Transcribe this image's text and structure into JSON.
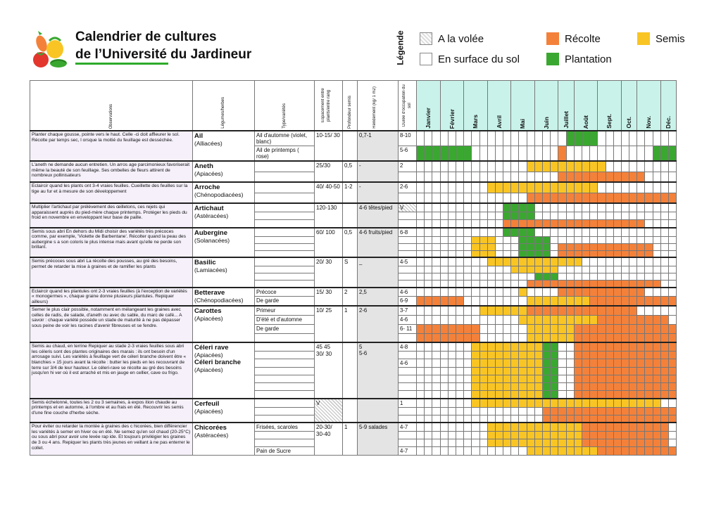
{
  "header": {
    "title_line1": "Calendrier de cultures",
    "title_line2": "de l’Université du Jardineur"
  },
  "legend": {
    "heading": "Légende",
    "items": [
      {
        "key": "volee",
        "label": "A la volée"
      },
      {
        "key": "surface",
        "label": "En surface du sol"
      },
      {
        "key": "recolte",
        "label": "Récolte",
        "color": "#f4813a"
      },
      {
        "key": "plantation",
        "label": "Plantation",
        "color": "#3aa830"
      },
      {
        "key": "semis",
        "label": "Semis",
        "color": "#f9c524"
      }
    ]
  },
  "table": {
    "columns": {
      "observations": "Observations",
      "legumes": "Légumes/herbes",
      "type": "Type/variétés",
      "espacement": "Espacement entre plants/entre rang",
      "profondeur": "Profondeur semis",
      "rendement": "Rendement (kg/ 1 m2)",
      "duree": "Durée d'occupation du sol"
    },
    "months": [
      "Janvier",
      "Février",
      "Mars",
      "Avril",
      "Mai",
      "Juin",
      "Juillet",
      "Août",
      "Sept.",
      "Oct.",
      "Nov.",
      "Déc."
    ],
    "groups": [
      {
        "observation": "Planter chaque gousse, pointe vers le haut. Celle -ci doit affleurer le sol. Récolte par temps sec, l orsque la moitié du feuillage est desséchée.",
        "name": "Ail",
        "family": "(Alliacées)",
        "espacement": "10-15/ 30",
        "profondeur": "",
        "rendement": "0,7-1",
        "rows": [
          {
            "type": "Ail d'automne (violet, blanc)",
            "duree": "8-10",
            "cells": "WWWWWWWWWWWWWWWWWWWGGGGWWWWWWWWWW"
          },
          {
            "type": "Ail de printemps ( rose)",
            "duree": "5-6",
            "cells": "GGGGGGGWWWWWWWWWWWOWWWWWWWWWWWGGG"
          }
        ]
      },
      {
        "observation": "L'aneth ne demande aucun entretien. Un arros age parcimonieux favoriserait même la beauté de son feuillage. Ses ombelles de fleurs attirent de nombreux pollinisateurs",
        "name": "Aneth",
        "family": "(Apiacées)",
        "espacement": "25/30",
        "profondeur": "0,5",
        "rendement": "-",
        "rows": [
          {
            "type": "",
            "duree": "2",
            "cells": "WWWWWWWWWWWWWWYYYYYYYYYYWWWWWWWWW"
          },
          {
            "type": "",
            "duree": "",
            "cells": "WWWWWWWWWWWWWWWWWWOOOOOOOOOOOWWWW"
          }
        ]
      },
      {
        "observation": "Eclaircir quand les plants ont 3-4 vraies feuilles. Cueillette des feuilles sur la tige au fur et à mesure de son développement",
        "name": "Arroche",
        "family": "(Chénopodiacées)",
        "espacement": "40/ 40-50",
        "profondeur": "1-2",
        "rendement": "-",
        "rows": [
          {
            "type": "",
            "duree": "2-6",
            "cells": "WWWWWWWWWYYYYYYYYYYYYYYWWWWWWWWWW"
          },
          {
            "type": "",
            "duree": "",
            "cells": "WWWWWWWWWWWWWWOOOOOOOOOOOOOOOOOOO"
          }
        ]
      },
      {
        "observation": "Multiplier l'artichaut par prélèvement des œilletons, ces rejets qui apparaissent auprès du pied-mère chaque printemps. Protéger les pieds du froid en novembre en enveloppant leur base de paille.",
        "name": "Artichaut",
        "family": "(Astéracées)",
        "espacement": "120-130",
        "profondeur": "",
        "rendement": "4-6 têtes/pied",
        "duree_dots": true,
        "rows": [
          {
            "type": "",
            "duree": "V",
            "cells": "WWWWWWWWWWWGGGGWWWWWWWWWWWWWWWWWW"
          },
          {
            "type": "",
            "duree": "",
            "cells": "WWWWWWWWWWWGGGGWWWWWWWWWWWWWWWWWW"
          },
          {
            "type": "",
            "duree": "",
            "cells": "WWWWWWWWWWWOOOOOOOOOOOOOOOOOOWWWW"
          }
        ]
      },
      {
        "observation": "Semis sous abri En dehors du Midi choisir des variétés très précoces comme, par exemple, 'Violette de Barbentane'. Récolter quand la peau des aubergine s a son coloris le plus intense mais avant qu'elle ne perde son brillant.",
        "name": "Aubergine",
        "family": "(Solanacées)",
        "espacement": "60/ 100",
        "profondeur": "0,5",
        "rendement": "4-6 fruits/pied",
        "rows": [
          {
            "type": "",
            "duree": "6-8",
            "cells": "WWWWWWWWWWWGGGGWWWWWWWWWWWWWWWWWW"
          },
          {
            "type": "",
            "duree": "",
            "cells": "WWWWWWWYYYWWWGGGGWWWWWWWWWWWWWWWW"
          },
          {
            "type": "",
            "duree": "",
            "cells": "WWWWWWWYYYWWWGGGGWOOOOOOOOOOOOWWW"
          },
          {
            "type": "",
            "duree": "",
            "cells": "WWWWWWWYYYWWWGGGGWOOOOOOOOOOOOWWW"
          }
        ]
      },
      {
        "observation": "Semis précoces sous abri La récolte des pousses, au gré des besoins, permet de retarder la mise à graines et de ramifier les plants",
        "name": "Basilic",
        "family": "(Lamiacées)",
        "espacement": "20/ 30",
        "profondeur": "S",
        "rendement": "_",
        "rows": [
          {
            "type": "",
            "duree": "4-5",
            "cells": "WWWWWWWWWYYYYYYYYYYYYWWWWWWWWWWWW"
          },
          {
            "type": "",
            "duree": "",
            "cells": "WWWWWWWWWWWWYYYYYYWWWWWWWWWWWWWWW"
          },
          {
            "type": "",
            "duree": "",
            "cells": "WWWWWWWWWWWWWWWGGGWWWWWWWWWWWWWWW"
          },
          {
            "type": "",
            "duree": "",
            "cells": "WWWWWWWWWWWWWWOOOOOOOOOOOOOOOOOWW"
          }
        ]
      },
      {
        "observation": "Eclaircir quand les plantules ont 2-3 vraies feuilles (à l'exception de variétés « monogermes », chaque graine donne plusieurs plantules. Repiquer ailleurs)",
        "name": "Betterave",
        "family": "(Chénopodiacées)",
        "espacement": "15/ 30",
        "profondeur": "2",
        "rendement": "2,5",
        "rows": [
          {
            "type": "Précoce",
            "duree": "4-6",
            "cells": "WWWWWWWWWWWWWYWWWWOOOOOOOOOOOWWWW"
          },
          {
            "type": "De garde",
            "duree": "6-9",
            "cells": "OOOOOOWWWWWWWWYYYYYYYYOOOOOOOOOOO"
          }
        ]
      },
      {
        "observation": "Semer le plus clair possible, notamment en mélangeant les graines avec celles de radis, de salade, d'aneth ou avec du sable, du marc de café... A savoir : chaque variété possède un stade de maturité à ne pas dépasser sous peine de voir les racines d'avenir fibreuses et se fendre.",
        "name": "Carottes",
        "family": "(Apiacées)",
        "espacement": "10/ 25",
        "profondeur": "1",
        "rendement": "2-6",
        "rows": [
          {
            "type": "Primeur",
            "duree": "3-7",
            "cells": "WWWWWWWWYYYYYYOOOOOOOOOOOOOOWWWWW"
          },
          {
            "type": "D'été et d'automne",
            "duree": "4-6",
            "cells": "WWWWWWWWWWWWWYYYYYYYYYYOOOOOOOOOW"
          },
          {
            "type": "De garde",
            "duree": "6- 11",
            "cells": "OOOOOOOOWWWWWWYYYYYYOOOOOOOOOOOOO"
          },
          {
            "type": "",
            "duree": "",
            "cells": "OOOOOOOOWWWWWWYYYYYYOOOOOOOOOOOOO"
          }
        ]
      },
      {
        "observation": "Semis au chaud, en terrine Repiquer au stade 2-3 vraies feuilles sous abri les céleris sont des plantes originaires des marais : ils ont besoin d'un arrosage suivi. Les variétés à feuillage vert de céleri branche doivent être « blanchies » 15 jours avant la récolte : butter les pieds en les recouvrant de terre sur 3/4 de leur hauteur. Le céleri-rave se récolte au gré des besoins jusqu'en hi ver où il est arraché et mis en jauge en cellier, cave ou frigo.",
        "name": "Céleri rave",
        "family": "(Apiacées)",
        "name2": "Céleri branche",
        "family2": "(Apiacées)",
        "espacement": "45 45",
        "espacement2": "30/ 30",
        "profondeur": "",
        "rendement": "5",
        "rendement2": "5-6",
        "rows": [
          {
            "type": "",
            "duree": "4-8",
            "cells": "WWWWWWWYYYYYYYYYGGWWOOOOOOOOOOOOO"
          },
          {
            "type": "",
            "duree": "",
            "cells": "WWWWWWWYYYYYYYYYGGWWOOOOOOOOOOOOO"
          },
          {
            "type": "",
            "duree": "4-6",
            "cells": "WWWWWWWYYYYYYYYYGGWWOOOOOOOOOOOOO"
          },
          {
            "type": "",
            "duree": "",
            "cells": "WWWWWWWYYYYYYYYYGGWWOOOOOOOOOOOOO"
          },
          {
            "type": "",
            "duree": "",
            "cells": "WWWWWWWYYYYYYYYYGGWWOOOOOOOOOOOOO"
          },
          {
            "type": "",
            "duree": "",
            "cells": "WWWWWWWYYYYYYYYYGGWWOOOOOOOOOOOOO"
          },
          {
            "type": "",
            "duree": "",
            "cells": "WWWWWWWYYYYYYYYYGGWWOOOOOOOOOOOOO"
          }
        ]
      },
      {
        "observation": "Semis échelonné, toutes les 2 ou 3 semaines, à expos ition chaude au printemps et en automne, à l'ombre et au frais en été. Recouvrir les semis d'une fine couche d'herbe sèche.",
        "name": "Cerfeuil",
        "family": "(Apiacées)",
        "espacement": "V",
        "espacement_dots": true,
        "profondeur": "",
        "rendement": "",
        "rows": [
          {
            "type": "",
            "duree": "1",
            "cells": "WWWWWWWYYYYYYYYYYYYYYYYYYYYYYYYWW"
          },
          {
            "type": "",
            "duree": "",
            "cells": "WWWWWWWWWWWWWWWWOOOOOOOOOOOOOOOOO"
          },
          {
            "type": "",
            "duree": "",
            "cells": "WWWWWWWWWWWWWWWWOOOOOOOOOOOOOOOOO"
          }
        ]
      },
      {
        "observation": "Pour éviter ou retarder la montée à graines des c hicorées, bien différencier les variétés à semer en hiver ou en été. Ne semez qu'en sol chaud (20-25°C) ou sous abri pour avoir une levée rap ide. Et toujours privilégier les graines de 3 ou 4 ans. Repiquer les plants très jeunes en veillant à ne pas enterrer le collet.",
        "name": "Chicorées",
        "family": "(Astéracées)",
        "espacement": "20-30/ 30-40",
        "profondeur": "1",
        "rendement": "5-9 salades",
        "rows": [
          {
            "type": "Frisées, scaroles",
            "duree": "4-7",
            "cells": "WWWWWWWWWYYYYYYYYYYYYOOOOOOOOOOOW"
          },
          {
            "type": "",
            "duree": "",
            "cells": "WWWWWWWWWYYYYYYYYYYYYOOOOOOOOOOOW"
          },
          {
            "type": "",
            "duree": "",
            "cells": "WWWWWWWWWYYYYYYYYYYYYOOOOOOOOOOOW"
          },
          {
            "type": "Pain de Sucre",
            "duree": "4-7",
            "cells": "WWWWWWWWWWWWWWYYYYYYYYYOOOOOOOOOO"
          }
        ]
      }
    ]
  }
}
